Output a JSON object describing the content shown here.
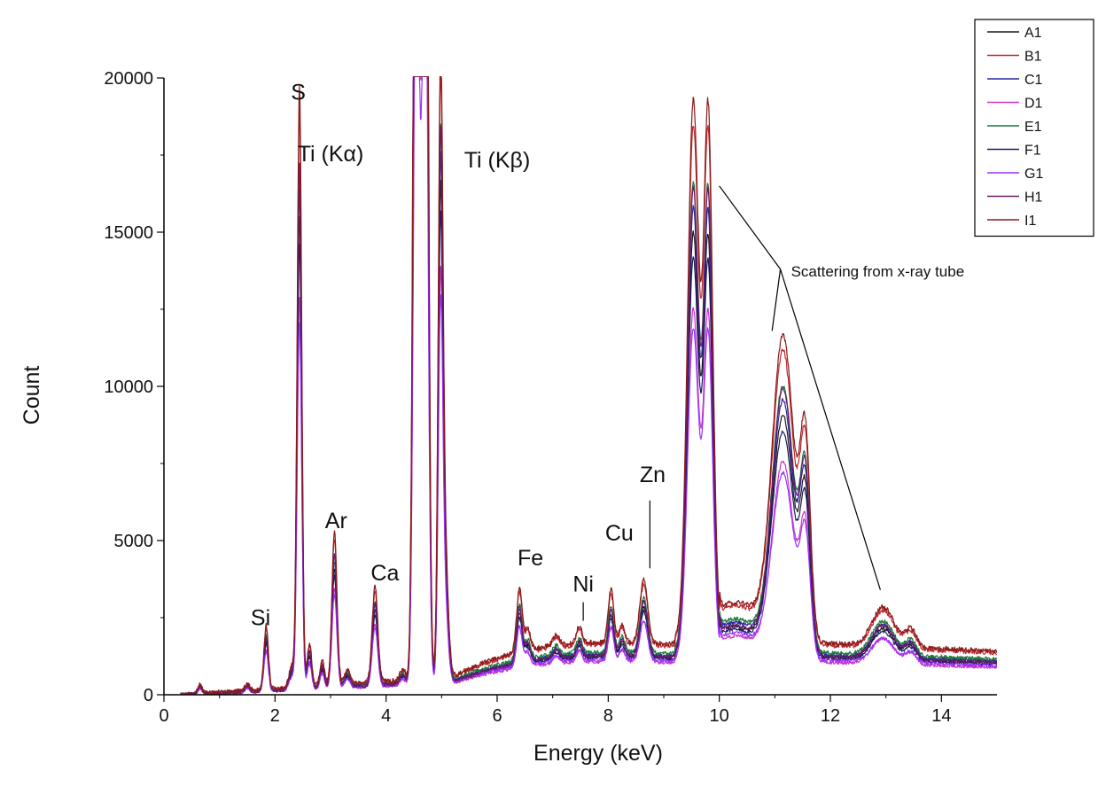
{
  "chart_data": {
    "type": "line",
    "xlabel": "Energy (keV)",
    "ylabel": "Count",
    "xlim": [
      0,
      15
    ],
    "ylim": [
      0,
      20000
    ],
    "x_ticks": [
      0,
      2,
      4,
      6,
      8,
      10,
      12,
      14
    ],
    "y_ticks": [
      0,
      5000,
      10000,
      15000,
      20000
    ],
    "legend_position": "top-right",
    "series": [
      {
        "name": "A1",
        "color": "#1a1a1a",
        "scale": 0.9,
        "bg": 1.0
      },
      {
        "name": "B1",
        "color": "#c0272d",
        "scale": 1.1,
        "bg": 1.3
      },
      {
        "name": "C1",
        "color": "#2a2a9e",
        "scale": 0.95,
        "bg": 1.05
      },
      {
        "name": "D1",
        "color": "#cc33cc",
        "scale": 0.75,
        "bg": 0.85
      },
      {
        "name": "E1",
        "color": "#1f7a3a",
        "scale": 1.0,
        "bg": 1.1
      },
      {
        "name": "F1",
        "color": "#1c1c5c",
        "scale": 0.85,
        "bg": 0.95
      },
      {
        "name": "G1",
        "color": "#9933ff",
        "scale": 0.7,
        "bg": 0.9
      },
      {
        "name": "H1",
        "color": "#6a1b6a",
        "scale": 1.0,
        "bg": 1.0
      },
      {
        "name": "I1",
        "color": "#8b1a1a",
        "scale": 1.15,
        "bg": 1.35
      }
    ],
    "peaks": [
      {
        "center": 0.65,
        "height": 250,
        "width": 0.04
      },
      {
        "center": 1.5,
        "height": 200,
        "width": 0.04
      },
      {
        "center": 1.84,
        "height": 1800,
        "width": 0.04
      },
      {
        "center": 2.3,
        "height": 600,
        "width": 0.05
      },
      {
        "center": 2.44,
        "height": 17000,
        "width": 0.04
      },
      {
        "center": 2.62,
        "height": 1200,
        "width": 0.04
      },
      {
        "center": 2.85,
        "height": 700,
        "width": 0.04
      },
      {
        "center": 3.07,
        "height": 4300,
        "width": 0.045
      },
      {
        "center": 3.3,
        "height": 400,
        "width": 0.05
      },
      {
        "center": 3.8,
        "height": 2700,
        "width": 0.05
      },
      {
        "center": 4.3,
        "height": 300,
        "width": 0.05
      },
      {
        "center": 4.55,
        "height": 40000,
        "width": 0.05
      },
      {
        "center": 4.7,
        "height": 40000,
        "width": 0.05
      },
      {
        "center": 4.98,
        "height": 16000,
        "width": 0.04
      },
      {
        "center": 5.05,
        "height": 4000,
        "width": 0.06
      },
      {
        "center": 6.4,
        "height": 1800,
        "width": 0.05
      },
      {
        "center": 6.55,
        "height": 600,
        "width": 0.05
      },
      {
        "center": 7.06,
        "height": 300,
        "width": 0.06
      },
      {
        "center": 7.48,
        "height": 500,
        "width": 0.05
      },
      {
        "center": 8.05,
        "height": 1500,
        "width": 0.05
      },
      {
        "center": 8.25,
        "height": 500,
        "width": 0.05
      },
      {
        "center": 8.64,
        "height": 1800,
        "width": 0.07
      },
      {
        "center": 9.53,
        "height": 14500,
        "width": 0.1
      },
      {
        "center": 9.8,
        "height": 14000,
        "width": 0.08
      },
      {
        "center": 11.15,
        "height": 8500,
        "width": 0.2
      },
      {
        "center": 11.55,
        "height": 5200,
        "width": 0.09
      },
      {
        "center": 12.95,
        "height": 1100,
        "width": 0.2
      },
      {
        "center": 13.45,
        "height": 500,
        "width": 0.1
      }
    ],
    "peak_labels": [
      {
        "text": "Si",
        "x": 1.74,
        "y": 2250
      },
      {
        "text": "S",
        "x": 2.42,
        "y": 19300
      },
      {
        "text": "Ar",
        "x": 3.1,
        "y": 5400
      },
      {
        "text": "Ca",
        "x": 3.98,
        "y": 3700
      },
      {
        "text": "Ti (Kα)",
        "x": 3.0,
        "y": 17300
      },
      {
        "text": "Ti (Kβ)",
        "x": 6.0,
        "y": 17100
      },
      {
        "text": "Fe",
        "x": 6.6,
        "y": 4200
      },
      {
        "text": "Ni",
        "x": 7.55,
        "y": 3350
      },
      {
        "text": "Cu",
        "x": 8.2,
        "y": 5000
      },
      {
        "text": "Zn",
        "x": 8.8,
        "y": 6900
      }
    ],
    "annotation": {
      "text": "Scattering from x-ray tube"
    }
  }
}
